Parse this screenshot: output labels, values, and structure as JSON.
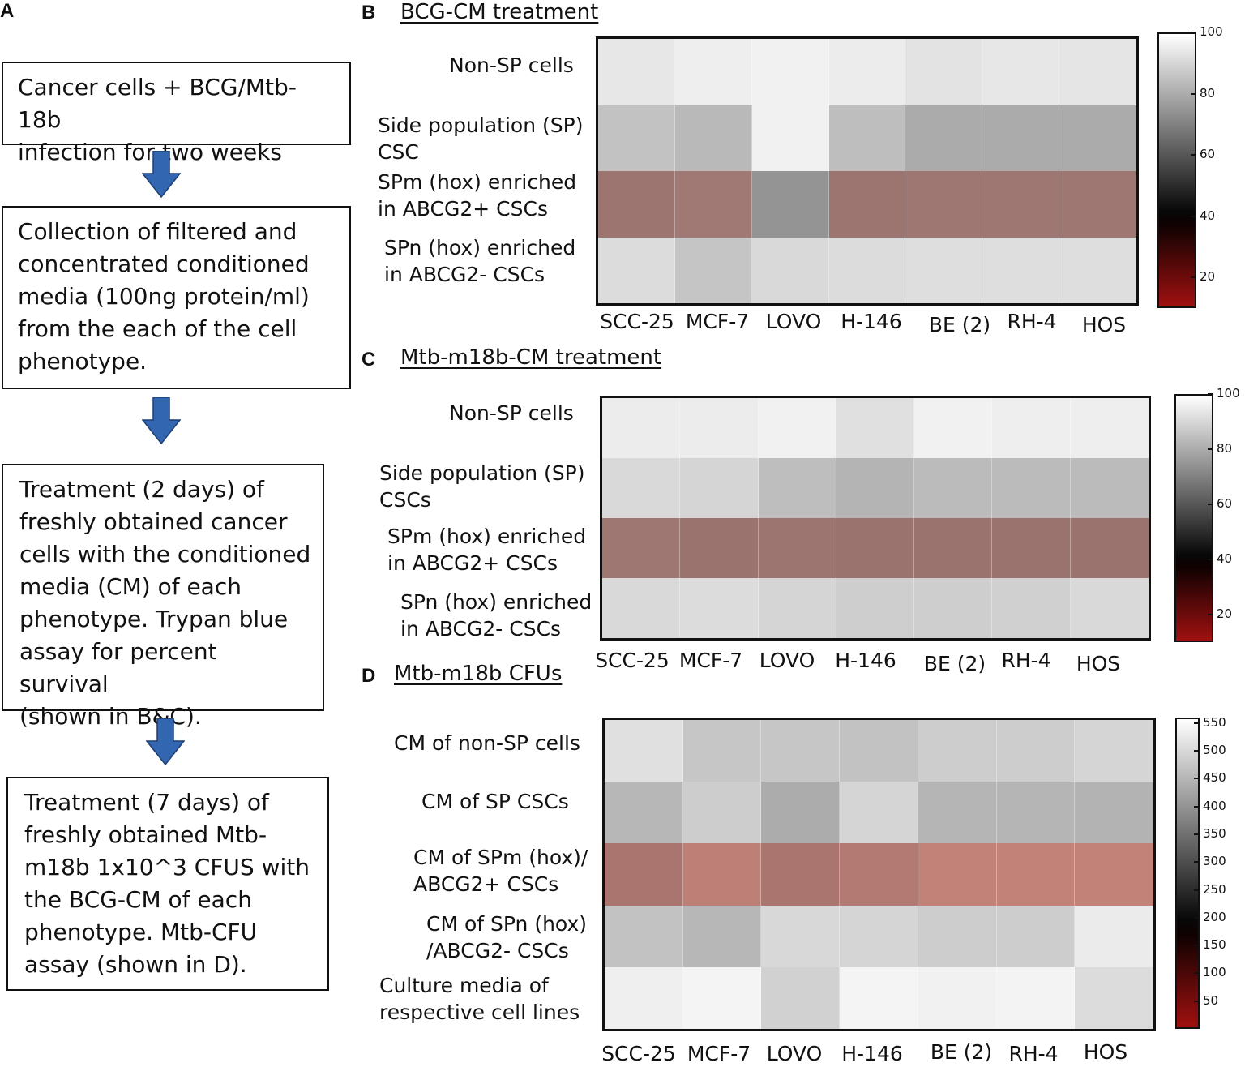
{
  "panels": {
    "a": {
      "letter": "A"
    },
    "b": {
      "letter": "B",
      "title": "BCG-CM treatment"
    },
    "c": {
      "letter": "C",
      "title": "Mtb-m18b-CM treatment"
    },
    "d": {
      "letter": "D",
      "title": "Mtb-m18b CFUs"
    }
  },
  "flowchart": {
    "steps": [
      "Cancer cells + BCG/Mtb-18b\ninfection for two weeks",
      "Collection of filtered and\nconcentrated conditioned\nmedia (100ng protein/ml)\nfrom the each of the cell\nphenotype.",
      "Treatment (2 days) of\nfreshly obtained cancer\ncells with the conditioned\nmedia (CM) of each\nphenotype. Trypan blue\nassay for percent survival\n(shown in B&C).",
      "Treatment (7 days) of\nfreshly obtained Mtb-\nm18b 1x10^3 CFUS with\nthe BCG-CM of each\nphenotype. Mtb-CFU\nassay (shown in D)."
    ]
  },
  "colors": {
    "arrow_fill": "#3366b0",
    "arrow_stroke": "#1e3f75",
    "colormap_stops": [
      "#a01010",
      "#000000",
      "#ffffff"
    ]
  },
  "chart_data": [
    {
      "type": "heatmap",
      "panel": "B",
      "title": "BCG-CM treatment",
      "categories": [
        "SCC-25",
        "MCF-7",
        "LOVO",
        "H-146",
        "BE (2)",
        "RH-4",
        "HOS"
      ],
      "rows": [
        "Non-SP cells",
        "Side population (SP)\nCSC",
        "SPm (hox) enriched\nin ABCG2+ CSCs",
        "SPn (hox) enriched\nin ABCG2- CSCs"
      ],
      "values": [
        [
          92,
          95,
          96,
          94,
          90,
          92,
          91
        ],
        [
          76,
          72,
          96,
          74,
          66,
          66,
          66
        ],
        [
          22,
          20,
          56,
          22,
          21,
          21,
          21
        ],
        [
          87,
          77,
          86,
          87,
          88,
          88,
          88
        ]
      ],
      "colorbar": {
        "min": 10,
        "max": 100,
        "ticks": [
          100,
          80,
          60,
          40,
          20
        ]
      }
    },
    {
      "type": "heatmap",
      "panel": "C",
      "title": "Mtb-m18b-CM treatment",
      "categories": [
        "SCC-25",
        "MCF-7",
        "LOVO",
        "H-146",
        "BE (2)",
        "RH-4",
        "HOS"
      ],
      "rows": [
        "Non-SP cells",
        "Side population (SP)\nCSCs",
        "SPm (hox) enriched\nin ABCG2+ CSCs",
        "SPn (hox) enriched\nin ABCG2- CSCs"
      ],
      "values": [
        [
          94,
          94,
          96,
          89,
          96,
          95,
          95
        ],
        [
          86,
          84,
          74,
          70,
          73,
          73,
          73
        ],
        [
          21,
          23,
          22,
          23,
          23,
          23,
          23
        ],
        [
          86,
          87,
          84,
          81,
          81,
          82,
          86
        ]
      ],
      "colorbar": {
        "min": 10,
        "max": 100,
        "ticks": [
          100,
          80,
          60,
          40,
          20
        ]
      }
    },
    {
      "type": "heatmap",
      "panel": "D",
      "title": "Mtb-m18b CFUs",
      "categories": [
        "SCC-25",
        "MCF-7",
        "LOVO",
        "H-146",
        "BE (2)",
        "RH-4",
        "HOS"
      ],
      "rows": [
        "CM of non-SP cells",
        "CM of SP CSCs",
        "CM of SPm (hox)/\nABCG2+ CSCs",
        "CM of SPn (hox)\n/ABCG2- CSCs",
        "Culture media of\nrespective cell lines"
      ],
      "values": [
        [
          490,
          420,
          420,
          410,
          440,
          440,
          460
        ],
        [
          380,
          440,
          350,
          460,
          375,
          375,
          370
        ],
        [
          100,
          60,
          100,
          80,
          50,
          50,
          50
        ],
        [
          410,
          380,
          470,
          460,
          440,
          440,
          520
        ],
        [
          530,
          545,
          450,
          545,
          535,
          540,
          480
        ]
      ],
      "colorbar": {
        "min": 0,
        "max": 560,
        "ticks": [
          550,
          500,
          450,
          400,
          350,
          300,
          250,
          200,
          150,
          100,
          50
        ]
      }
    }
  ]
}
